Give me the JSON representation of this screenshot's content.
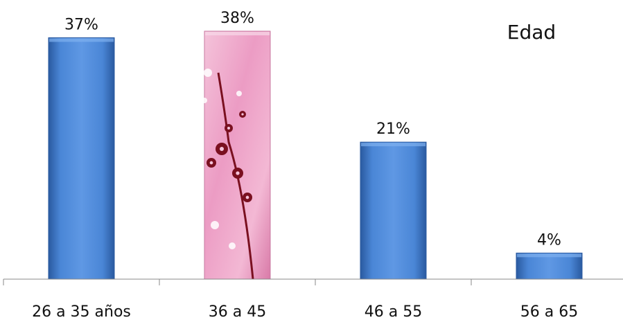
{
  "chart_data": {
    "type": "bar",
    "title": "Edad",
    "categories": [
      "26 a 35 años",
      "36 a 45",
      "46 a 55",
      "56 a 65"
    ],
    "values": [
      37,
      38,
      21,
      4
    ],
    "data_labels": [
      "37%",
      "38%",
      "21%",
      "4%"
    ],
    "xlabel": "",
    "ylabel": "",
    "ylim": [
      0,
      40
    ],
    "grid": false,
    "legend": "none",
    "colors": {
      "bar": "#4a86d6",
      "bar_dark": "#2a5aa0",
      "bar_highlight": "#e89ac0",
      "highlight_branch": "#7a1020",
      "axis": "#888888"
    },
    "highlighted_bar": "36 a 45"
  }
}
